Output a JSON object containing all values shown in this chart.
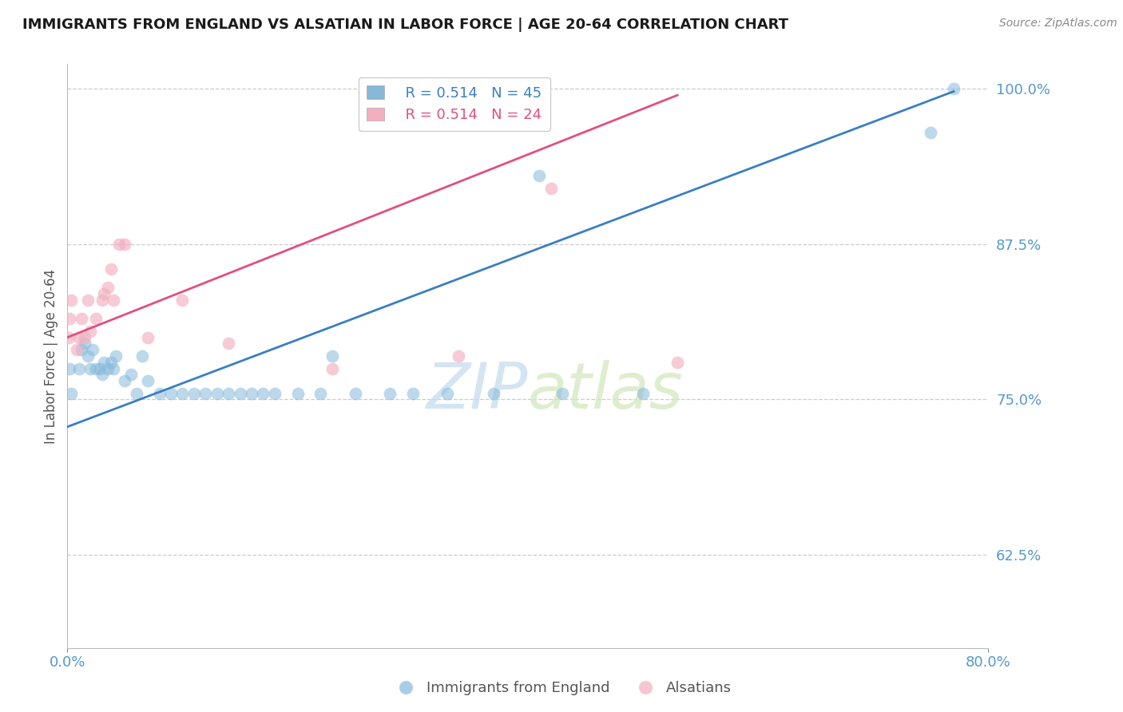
{
  "title": "IMMIGRANTS FROM ENGLAND VS ALSATIAN IN LABOR FORCE | AGE 20-64 CORRELATION CHART",
  "source": "Source: ZipAtlas.com",
  "ylabel": "In Labor Force | Age 20-64",
  "xlim": [
    0.0,
    0.8
  ],
  "ylim": [
    0.55,
    1.02
  ],
  "xtick_positions": [
    0.0,
    0.8
  ],
  "xtick_labels": [
    "0.0%",
    "80.0%"
  ],
  "ytick_values": [
    0.625,
    0.75,
    0.875,
    1.0
  ],
  "ytick_labels": [
    "62.5%",
    "75.0%",
    "87.5%",
    "100.0%"
  ],
  "blue_color": "#85b8d9",
  "pink_color": "#f2afc0",
  "blue_line_color": "#3a7fc1",
  "pink_line_color": "#e05080",
  "legend_blue_r": "R = 0.514",
  "legend_blue_n": "N = 45",
  "legend_pink_r": "R = 0.514",
  "legend_pink_n": "N = 24",
  "watermark_zip": "ZIP",
  "watermark_atlas": "atlas",
  "title_color": "#1a1a1a",
  "axis_label_color": "#5599cc",
  "england_x": [
    0.002,
    0.003,
    0.01,
    0.012,
    0.015,
    0.018,
    0.02,
    0.022,
    0.025,
    0.028,
    0.03,
    0.032,
    0.035,
    0.038,
    0.04,
    0.042,
    0.05,
    0.055,
    0.06,
    0.065,
    0.07,
    0.08,
    0.09,
    0.1,
    0.11,
    0.12,
    0.13,
    0.14,
    0.15,
    0.16,
    0.17,
    0.18,
    0.2,
    0.22,
    0.23,
    0.25,
    0.28,
    0.3,
    0.33,
    0.37,
    0.41,
    0.43,
    0.5,
    0.75,
    0.77
  ],
  "england_y": [
    0.775,
    0.755,
    0.775,
    0.79,
    0.795,
    0.785,
    0.775,
    0.79,
    0.775,
    0.775,
    0.77,
    0.78,
    0.775,
    0.78,
    0.775,
    0.785,
    0.765,
    0.77,
    0.755,
    0.785,
    0.765,
    0.755,
    0.755,
    0.755,
    0.755,
    0.755,
    0.755,
    0.755,
    0.755,
    0.755,
    0.755,
    0.755,
    0.755,
    0.755,
    0.785,
    0.755,
    0.755,
    0.755,
    0.755,
    0.755,
    0.93,
    0.755,
    0.755,
    0.965,
    1.0
  ],
  "alsatian_x": [
    0.001,
    0.002,
    0.003,
    0.008,
    0.01,
    0.012,
    0.015,
    0.018,
    0.02,
    0.025,
    0.03,
    0.032,
    0.035,
    0.038,
    0.04,
    0.045,
    0.05,
    0.07,
    0.1,
    0.14,
    0.23,
    0.34,
    0.42,
    0.53
  ],
  "alsatian_y": [
    0.8,
    0.815,
    0.83,
    0.79,
    0.8,
    0.815,
    0.8,
    0.83,
    0.805,
    0.815,
    0.83,
    0.835,
    0.84,
    0.855,
    0.83,
    0.875,
    0.875,
    0.8,
    0.83,
    0.795,
    0.775,
    0.785,
    0.92,
    0.78
  ],
  "england_line_x": [
    0.0,
    0.77
  ],
  "england_line_y": [
    0.728,
    0.998
  ],
  "alsatian_line_x": [
    0.0,
    0.53
  ],
  "alsatian_line_y": [
    0.8,
    0.995
  ]
}
